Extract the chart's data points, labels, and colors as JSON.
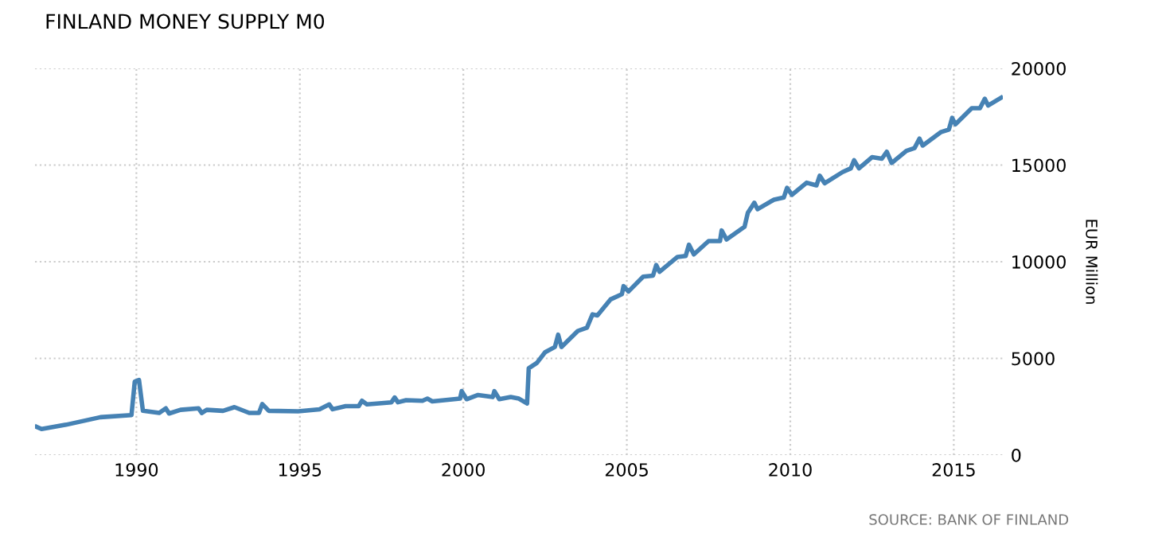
{
  "chart_data": {
    "type": "line",
    "title": "FINLAND MONEY SUPPLY M0",
    "ylabel": "EUR Million",
    "annotations": [
      "SOURCE: BANK OF FINLAND"
    ],
    "x": [
      1986.95,
      1987.1,
      1987.85,
      1988.9,
      1989.85,
      1989.95,
      1990.08,
      1990.2,
      1990.7,
      1990.9,
      1991.0,
      1991.35,
      1991.9,
      1992.0,
      1992.15,
      1992.65,
      1993.0,
      1993.45,
      1993.75,
      1993.85,
      1994.05,
      1994.95,
      1995.6,
      1995.9,
      1996.0,
      1996.4,
      1996.8,
      1996.9,
      1997.05,
      1997.8,
      1997.9,
      1998.0,
      1998.25,
      1998.75,
      1998.9,
      1999.05,
      1999.9,
      1999.95,
      2000.1,
      2000.45,
      2000.9,
      2000.95,
      2001.1,
      2001.45,
      2001.7,
      2001.95,
      2002.0,
      2002.25,
      2002.5,
      2002.8,
      2002.9,
      2003.0,
      2003.5,
      2003.78,
      2003.95,
      2004.1,
      2004.5,
      2004.85,
      2004.9,
      2005.05,
      2005.5,
      2005.8,
      2005.9,
      2006.0,
      2006.55,
      2006.8,
      2006.9,
      2007.05,
      2007.5,
      2007.85,
      2007.9,
      2008.05,
      2008.6,
      2008.7,
      2008.9,
      2009.0,
      2009.5,
      2009.8,
      2009.9,
      2010.05,
      2010.5,
      2010.8,
      2010.9,
      2011.05,
      2011.6,
      2011.85,
      2011.95,
      2012.1,
      2012.5,
      2012.8,
      2012.95,
      2013.1,
      2013.55,
      2013.8,
      2013.95,
      2014.05,
      2014.6,
      2014.85,
      2014.95,
      2015.05,
      2015.55,
      2015.8,
      2015.95,
      2016.05,
      2016.45
    ],
    "series": [
      {
        "color": "#4682b4",
        "values": [
          1460,
          1350,
          1570,
          1960,
          2070,
          3800,
          3880,
          2290,
          2180,
          2420,
          2150,
          2340,
          2420,
          2180,
          2340,
          2290,
          2480,
          2180,
          2180,
          2640,
          2290,
          2260,
          2370,
          2620,
          2370,
          2530,
          2530,
          2810,
          2620,
          2730,
          2980,
          2730,
          2840,
          2810,
          2920,
          2780,
          2920,
          3310,
          2890,
          3110,
          3000,
          3310,
          2890,
          3000,
          2920,
          2670,
          4490,
          4770,
          5320,
          5590,
          6230,
          5590,
          6420,
          6590,
          7280,
          7220,
          8050,
          8320,
          8740,
          8460,
          9230,
          9280,
          9830,
          9480,
          10250,
          10300,
          10880,
          10380,
          11070,
          11070,
          11620,
          11150,
          11810,
          12530,
          13050,
          12720,
          13210,
          13320,
          13820,
          13460,
          14090,
          13950,
          14450,
          14060,
          14640,
          14830,
          15250,
          14830,
          15410,
          15330,
          15690,
          15110,
          15740,
          15880,
          16370,
          16010,
          16700,
          16840,
          17440,
          17110,
          17940,
          17940,
          18430,
          18080,
          18490
        ]
      }
    ],
    "xlim": [
      1986.9,
      2016.5
    ],
    "ylim": [
      0,
      20000
    ],
    "xticks": [
      1990,
      1995,
      2000,
      2005,
      2010,
      2015
    ],
    "yticks": [
      0,
      5000,
      10000,
      15000,
      20000
    ],
    "grid": true,
    "line_style": "solid"
  }
}
